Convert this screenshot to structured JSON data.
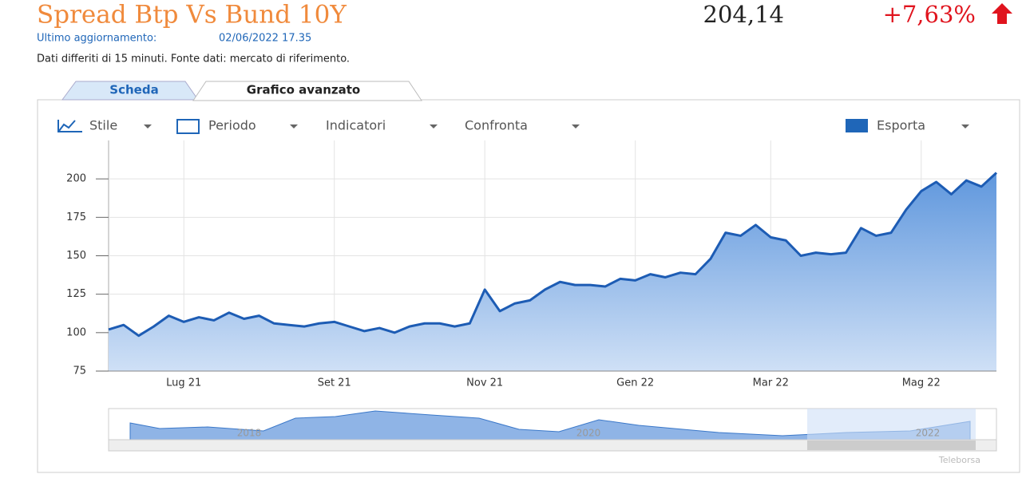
{
  "header": {
    "title": "Spread Btp Vs Bund 10Y",
    "price": "204,14",
    "change": "+7,63%",
    "updated_label": "Ultimo aggiornamento:",
    "updated_value": "02/06/2022 17.35",
    "note": "Dati differiti di 15 minuti.  Fonte dati: mercato di riferimento."
  },
  "tabs": [
    "Scheda",
    "Grafico avanzato"
  ],
  "toolbar": [
    "Stile",
    "Periodo",
    "Indicatori",
    "Confronta",
    "Esporta"
  ],
  "navigator": {
    "labels": [
      "2018",
      "2020",
      "2022"
    ]
  },
  "watermark": "Teleborsa",
  "chart_data": {
    "type": "area",
    "color": "#1d5cb4",
    "categories": [
      null,
      null,
      null,
      null,
      null,
      "Lug 21",
      null,
      null,
      null,
      null,
      null,
      null,
      null,
      null,
      null,
      "Set 21",
      null,
      null,
      null,
      null,
      null,
      null,
      null,
      null,
      null,
      "Nov 21",
      null,
      null,
      null,
      null,
      null,
      null,
      null,
      null,
      null,
      "Gen 22",
      null,
      null,
      null,
      null,
      null,
      null,
      null,
      null,
      "Mar 22",
      null,
      null,
      null,
      null,
      null,
      null,
      null,
      null,
      null,
      "Mag 22",
      null,
      null,
      null,
      null,
      null
    ],
    "values": [
      102,
      105,
      98,
      104,
      111,
      107,
      110,
      108,
      113,
      109,
      111,
      106,
      105,
      104,
      106,
      107,
      104,
      101,
      103,
      100,
      104,
      106,
      106,
      104,
      106,
      128,
      114,
      119,
      121,
      128,
      133,
      131,
      131,
      130,
      135,
      134,
      138,
      136,
      139,
      138,
      148,
      165,
      163,
      170,
      162,
      160,
      150,
      152,
      151,
      152,
      168,
      163,
      165,
      180,
      192,
      198,
      190,
      199,
      195,
      204
    ],
    "ylim": [
      75,
      225
    ],
    "yticks": [
      75,
      100,
      125,
      150,
      175,
      200
    ],
    "grid": true
  }
}
